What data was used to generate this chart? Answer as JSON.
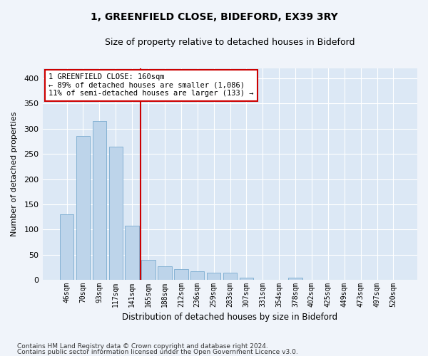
{
  "title": "1, GREENFIELD CLOSE, BIDEFORD, EX39 3RY",
  "subtitle": "Size of property relative to detached houses in Bideford",
  "xlabel": "Distribution of detached houses by size in Bideford",
  "ylabel": "Number of detached properties",
  "categories": [
    "46sqm",
    "70sqm",
    "93sqm",
    "117sqm",
    "141sqm",
    "165sqm",
    "188sqm",
    "212sqm",
    "236sqm",
    "259sqm",
    "283sqm",
    "307sqm",
    "331sqm",
    "354sqm",
    "378sqm",
    "402sqm",
    "425sqm",
    "449sqm",
    "473sqm",
    "497sqm",
    "520sqm"
  ],
  "values": [
    130,
    285,
    315,
    265,
    108,
    40,
    27,
    22,
    17,
    15,
    14,
    5,
    0,
    0,
    5,
    0,
    0,
    0,
    0,
    0,
    0
  ],
  "bar_color": "#bdd4ea",
  "bar_edge_color": "#7aabcf",
  "vline_color": "#cc0000",
  "annotation_text": "1 GREENFIELD CLOSE: 160sqm\n← 89% of detached houses are smaller (1,086)\n11% of semi-detached houses are larger (133) →",
  "annotation_box_color": "#ffffff",
  "annotation_box_edge": "#cc0000",
  "ylim": [
    0,
    420
  ],
  "yticks": [
    0,
    50,
    100,
    150,
    200,
    250,
    300,
    350,
    400
  ],
  "footer1": "Contains HM Land Registry data © Crown copyright and database right 2024.",
  "footer2": "Contains public sector information licensed under the Open Government Licence v3.0.",
  "bg_color": "#edf2f9",
  "plot_bg": "#dce8f5",
  "fig_bg": "#f0f4fa"
}
